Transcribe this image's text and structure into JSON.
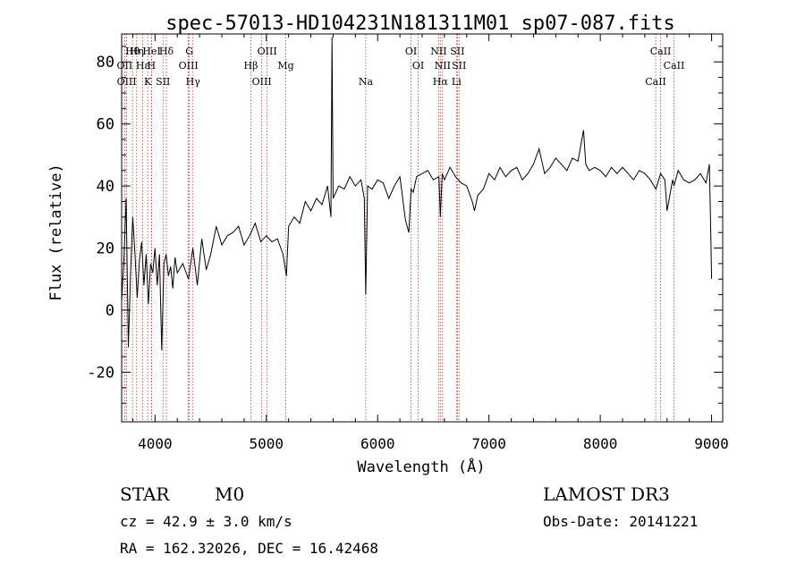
{
  "chart_data": {
    "type": "line",
    "title": "spec-57013-HD104231N181311M01_sp07-087.fits",
    "xlabel": "Wavelength (Å)",
    "ylabel": "Flux (relative)",
    "xlim": [
      3700,
      9100
    ],
    "ylim": [
      -36,
      89
    ],
    "x_ticks": [
      4000,
      5000,
      6000,
      7000,
      8000,
      9000
    ],
    "y_ticks": [
      -20,
      0,
      20,
      40,
      60,
      80
    ],
    "grid": false,
    "series": [
      {
        "color": "#000000",
        "x": [
          3700,
          3720,
          3740,
          3760,
          3780,
          3800,
          3820,
          3840,
          3860,
          3880,
          3900,
          3920,
          3940,
          3960,
          3980,
          4000,
          4020,
          4040,
          4060,
          4080,
          4100,
          4120,
          4140,
          4160,
          4180,
          4200,
          4250,
          4300,
          4340,
          4380,
          4420,
          4460,
          4500,
          4550,
          4600,
          4650,
          4700,
          4750,
          4800,
          4850,
          4900,
          4950,
          5000,
          5050,
          5100,
          5150,
          5180,
          5200,
          5250,
          5300,
          5350,
          5400,
          5450,
          5500,
          5550,
          5580,
          5590,
          5600,
          5650,
          5700,
          5750,
          5800,
          5850,
          5880,
          5893,
          5910,
          5950,
          6000,
          6050,
          6100,
          6150,
          6200,
          6250,
          6280,
          6300,
          6320,
          6350,
          6400,
          6450,
          6500,
          6550,
          6563,
          6580,
          6600,
          6650,
          6700,
          6750,
          6800,
          6850,
          6870,
          6900,
          6950,
          7000,
          7050,
          7100,
          7150,
          7200,
          7250,
          7300,
          7350,
          7400,
          7450,
          7500,
          7550,
          7600,
          7650,
          7700,
          7750,
          7800,
          7850,
          7870,
          7900,
          7950,
          8000,
          8050,
          8100,
          8150,
          8200,
          8250,
          8300,
          8350,
          8400,
          8450,
          8500,
          8542,
          8580,
          8600,
          8650,
          8662,
          8700,
          8750,
          8800,
          8850,
          8900,
          8950,
          8980,
          8990,
          9000
        ],
        "y": [
          3,
          16,
          36,
          -12,
          12,
          30,
          18,
          4,
          16,
          22,
          8,
          18,
          2,
          15,
          12,
          20,
          8,
          18,
          -13,
          15,
          18,
          11,
          14,
          7,
          17,
          12,
          15,
          10,
          20,
          8,
          23,
          13,
          18,
          27,
          21,
          24,
          25,
          27,
          21,
          24,
          28,
          22,
          24,
          22,
          23,
          18,
          11,
          27,
          30,
          28,
          35,
          32,
          36,
          34,
          40,
          30,
          88,
          36,
          40,
          39,
          43,
          40,
          42,
          36,
          5,
          40,
          39,
          42,
          41,
          36,
          40,
          43,
          29,
          25,
          39,
          38,
          43,
          44,
          45,
          42,
          43,
          30,
          44,
          42,
          46,
          43,
          41,
          40,
          35,
          32,
          37,
          39,
          44,
          42,
          46,
          43,
          45,
          46,
          42,
          44,
          47,
          52,
          44,
          46,
          49,
          47,
          45,
          49,
          48,
          58,
          47,
          45,
          46,
          45,
          43,
          46,
          44,
          46,
          44,
          42,
          45,
          44,
          42,
          39,
          44,
          42,
          32,
          42,
          40,
          45,
          42,
          41,
          42,
          44,
          41,
          47,
          30,
          10
        ]
      }
    ],
    "lines": [
      {
        "label": "Hθ",
        "x": 3798
      },
      {
        "label": "OII",
        "x": 3727
      },
      {
        "label": "OIII",
        "x": 3745
      },
      {
        "label": "Hη",
        "x": 3835
      },
      {
        "label": "Hε",
        "x": 3889
      },
      {
        "label": "K",
        "x": 3934
      },
      {
        "label": "HeI",
        "x": 3970
      },
      {
        "label": "H",
        "x": 3968
      },
      {
        "label": "SII",
        "x": 4072
      },
      {
        "label": "Hδ",
        "x": 4102
      },
      {
        "label": "OIII",
        "x": 4300
      },
      {
        "label": "Hγ",
        "x": 4341
      },
      {
        "label": "G",
        "x": 4308
      },
      {
        "label": "Hβ",
        "x": 4861
      },
      {
        "label": "OIII",
        "x": 4959
      },
      {
        "label": "OIII",
        "x": 5007
      },
      {
        "label": "Mg",
        "x": 5175
      },
      {
        "label": "Na",
        "x": 5893
      },
      {
        "label": "OI",
        "x": 6300
      },
      {
        "label": "OI",
        "x": 6364
      },
      {
        "label": "Hα",
        "x": 6563
      },
      {
        "label": "NII",
        "x": 6548
      },
      {
        "label": "NII",
        "x": 6583
      },
      {
        "label": "Li",
        "x": 6708
      },
      {
        "label": "SII",
        "x": 6716
      },
      {
        "label": "SII",
        "x": 6731
      },
      {
        "label": "CaII",
        "x": 8498
      },
      {
        "label": "CaII",
        "x": 8542
      },
      {
        "label": "CaII",
        "x": 8662
      }
    ]
  },
  "info": {
    "class_label": "STAR",
    "subclass": "M0",
    "survey": "LAMOST DR3",
    "cz": "cz = 42.9 ± 3.0 km/s",
    "obs_date": "Obs-Date: 20141221",
    "coords": "RA = 162.32026, DEC =  16.42468"
  }
}
